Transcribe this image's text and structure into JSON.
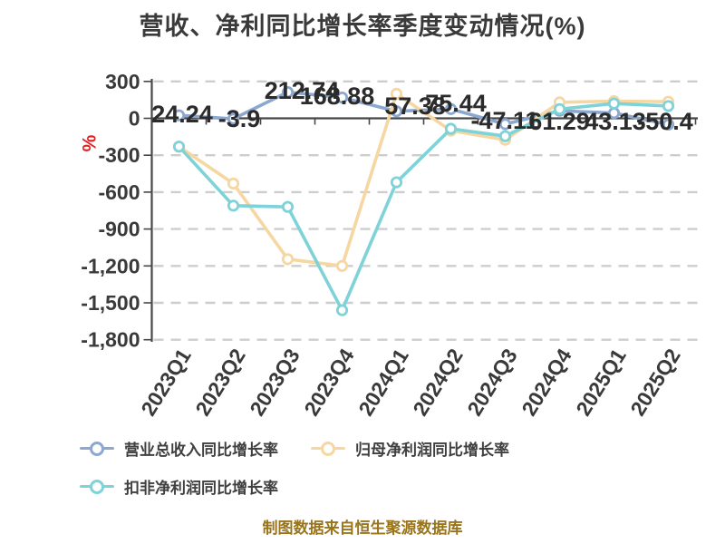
{
  "title": "营收、净利同比增长率季度变动情况(%)",
  "footer": "制图数据来自恒生聚源数据库",
  "chart_data": {
    "type": "line",
    "title": "营收、净利同比增长率季度变动情况(%)",
    "categories": [
      "2023Q1",
      "2023Q2",
      "2023Q3",
      "2023Q4",
      "2024Q1",
      "2024Q2",
      "2024Q3",
      "2024Q4",
      "2025Q1",
      "2025Q2"
    ],
    "series": [
      {
        "name": "营业总收入同比增长率",
        "color": "#8CA8D0",
        "values": [
          24.24,
          -3.9,
          212.74,
          168.88,
          57.38,
          75.44,
          -47.11,
          61.29,
          43.13,
          -50.4
        ],
        "point_labels": [
          "24.24",
          "-3.9",
          "212.74",
          "168.88",
          "57.38",
          "75.44",
          "-47.11",
          "61.29",
          "43.13",
          "-50.4"
        ]
      },
      {
        "name": "归母净利润同比增长率",
        "color": "#F6D7A2",
        "values": [
          -230,
          -530,
          -1145,
          -1200,
          200,
          -100,
          -175,
          130,
          140,
          135
        ]
      },
      {
        "name": "扣非净利润同比增长率",
        "color": "#7ED3D8",
        "values": [
          -230,
          -710,
          -720,
          -1560,
          -520,
          -85,
          -145,
          75,
          120,
          100
        ]
      }
    ],
    "xlabel": "",
    "ylabel": "%",
    "ylabel_color": "#E01F1F",
    "ylim": [
      -1800,
      300
    ],
    "y_ticks": [
      {
        "value": 300,
        "label": "300"
      },
      {
        "value": 0,
        "label": "0"
      },
      {
        "value": -300,
        "label": "-300"
      },
      {
        "value": -600,
        "label": "-600"
      },
      {
        "value": -900,
        "label": "-900"
      },
      {
        "value": -1200,
        "label": "-1,200"
      },
      {
        "value": -1500,
        "label": "-1,500"
      },
      {
        "value": -1800,
        "label": "-1,800"
      }
    ],
    "grid": "dashed-horizontal",
    "legend_position": "bottom-left"
  },
  "legend": {
    "items": [
      {
        "label": "营业总收入同比增长率",
        "color": "#8CA8D0"
      },
      {
        "label": "归母净利润同比增长率",
        "color": "#F6D7A2"
      },
      {
        "label": "扣非净利润同比增长率",
        "color": "#7ED3D8"
      }
    ]
  },
  "colors": {
    "background": "#FFFFFF",
    "grid": "#CDCDCD",
    "axis": "#474747",
    "tick_text": "#3A3A3A",
    "data_label": "#2B2B2B",
    "title": "#3A3A3A",
    "footer": "#9A741A"
  }
}
